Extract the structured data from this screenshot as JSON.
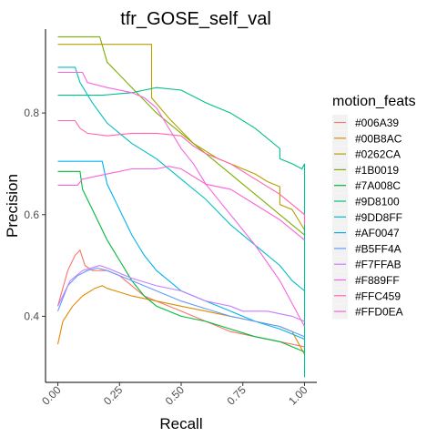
{
  "chart_data": {
    "type": "line",
    "title": "tfr_GOSE_self_val",
    "xlabel": "Recall",
    "ylabel": "Precision",
    "xlim": [
      -0.05,
      1.05
    ],
    "ylim": [
      0.27,
      0.965
    ],
    "x_ticks": [
      0,
      0.25,
      0.5,
      0.75,
      1
    ],
    "x_tick_labels": [
      "0.00",
      "0.25",
      "0.50",
      "0.75",
      "1.00"
    ],
    "y_ticks": [
      0.4,
      0.6,
      0.8
    ],
    "y_tick_labels": [
      "0.4",
      "0.6",
      "0.8"
    ],
    "grid": false,
    "legend": {
      "title": "motion_feats",
      "placement": "right"
    },
    "series": [
      {
        "name": "#006A39",
        "color": "#F8766D",
        "points": [
          [
            0,
            0.42
          ],
          [
            0.04,
            0.49
          ],
          [
            0.07,
            0.52
          ],
          [
            0.09,
            0.53
          ],
          [
            0.11,
            0.5
          ],
          [
            0.14,
            0.49
          ],
          [
            0.2,
            0.49
          ],
          [
            0.25,
            0.48
          ],
          [
            0.3,
            0.46
          ],
          [
            0.35,
            0.44
          ],
          [
            0.4,
            0.43
          ],
          [
            0.5,
            0.41
          ],
          [
            0.6,
            0.39
          ],
          [
            0.7,
            0.37
          ],
          [
            0.8,
            0.36
          ],
          [
            0.9,
            0.35
          ],
          [
            1,
            0.34
          ]
        ]
      },
      {
        "name": "#00B8AC",
        "color": "#DE8C00",
        "points": [
          [
            0,
            0.345
          ],
          [
            0.02,
            0.39
          ],
          [
            0.06,
            0.42
          ],
          [
            0.1,
            0.44
          ],
          [
            0.15,
            0.455
          ],
          [
            0.18,
            0.46
          ],
          [
            0.2,
            0.455
          ],
          [
            0.3,
            0.44
          ],
          [
            0.4,
            0.43
          ],
          [
            0.5,
            0.42
          ],
          [
            0.6,
            0.41
          ],
          [
            0.7,
            0.4
          ],
          [
            0.8,
            0.39
          ],
          [
            0.9,
            0.38
          ],
          [
            0.95,
            0.37
          ],
          [
            1,
            0.325
          ]
        ]
      },
      {
        "name": "#0262CA",
        "color": "#B79F00",
        "points": [
          [
            0,
            0.935
          ],
          [
            0.38,
            0.935
          ],
          [
            0.38,
            0.83
          ],
          [
            0.45,
            0.79
          ],
          [
            0.55,
            0.74
          ],
          [
            0.65,
            0.71
          ],
          [
            0.7,
            0.7
          ],
          [
            0.75,
            0.69
          ],
          [
            0.8,
            0.68
          ],
          [
            0.85,
            0.665
          ],
          [
            0.9,
            0.655
          ],
          [
            0.9,
            0.62
          ],
          [
            0.95,
            0.61
          ],
          [
            1,
            0.57
          ]
        ]
      },
      {
        "name": "#1B0019",
        "color": "#7CAE00",
        "points": [
          [
            0,
            0.95
          ],
          [
            0.17,
            0.95
          ],
          [
            0.2,
            0.9
          ],
          [
            0.3,
            0.85
          ],
          [
            0.4,
            0.8
          ],
          [
            0.5,
            0.76
          ],
          [
            0.6,
            0.72
          ],
          [
            0.7,
            0.68
          ],
          [
            0.75,
            0.66
          ],
          [
            0.8,
            0.64
          ],
          [
            0.85,
            0.62
          ],
          [
            0.9,
            0.6
          ],
          [
            0.95,
            0.58
          ],
          [
            1,
            0.56
          ]
        ]
      },
      {
        "name": "#7A008C",
        "color": "#00BA38",
        "points": [
          [
            0,
            0.685
          ],
          [
            0.09,
            0.685
          ],
          [
            0.1,
            0.65
          ],
          [
            0.15,
            0.6
          ],
          [
            0.2,
            0.55
          ],
          [
            0.25,
            0.51
          ],
          [
            0.3,
            0.47
          ],
          [
            0.35,
            0.44
          ],
          [
            0.4,
            0.42
          ],
          [
            0.5,
            0.4
          ],
          [
            0.6,
            0.39
          ],
          [
            0.7,
            0.375
          ],
          [
            0.8,
            0.36
          ],
          [
            0.9,
            0.35
          ],
          [
            1,
            0.33
          ]
        ]
      },
      {
        "name": "#9D8100",
        "color": "#00C08B",
        "points": [
          [
            0,
            0.835
          ],
          [
            0.18,
            0.835
          ],
          [
            0.3,
            0.84
          ],
          [
            0.35,
            0.845
          ],
          [
            0.4,
            0.85
          ],
          [
            0.5,
            0.845
          ],
          [
            0.6,
            0.82
          ],
          [
            0.7,
            0.8
          ],
          [
            0.8,
            0.77
          ],
          [
            0.9,
            0.73
          ],
          [
            0.9,
            0.71
          ],
          [
            0.95,
            0.7
          ],
          [
            0.99,
            0.69
          ],
          [
            1,
            0.7
          ],
          [
            1,
            0.28
          ]
        ]
      },
      {
        "name": "#9DD8FF",
        "color": "#00BFC4",
        "points": [
          [
            0,
            0.89
          ],
          [
            0.07,
            0.89
          ],
          [
            0.09,
            0.86
          ],
          [
            0.14,
            0.82
          ],
          [
            0.2,
            0.78
          ],
          [
            0.25,
            0.76
          ],
          [
            0.3,
            0.74
          ],
          [
            0.4,
            0.71
          ],
          [
            0.5,
            0.67
          ],
          [
            0.6,
            0.63
          ],
          [
            0.7,
            0.58
          ],
          [
            0.8,
            0.54
          ],
          [
            0.9,
            0.5
          ],
          [
            0.95,
            0.47
          ],
          [
            1,
            0.45
          ]
        ]
      },
      {
        "name": "#AF0047",
        "color": "#00B4F0",
        "points": [
          [
            0,
            0.705
          ],
          [
            0.18,
            0.705
          ],
          [
            0.2,
            0.66
          ],
          [
            0.25,
            0.61
          ],
          [
            0.3,
            0.56
          ],
          [
            0.35,
            0.52
          ],
          [
            0.4,
            0.49
          ],
          [
            0.45,
            0.47
          ],
          [
            0.5,
            0.45
          ],
          [
            0.6,
            0.43
          ],
          [
            0.7,
            0.41
          ],
          [
            0.8,
            0.39
          ],
          [
            0.9,
            0.375
          ],
          [
            1,
            0.355
          ]
        ]
      },
      {
        "name": "#B5FF4A",
        "color": "#619CFF",
        "points": [
          [
            0,
            0.41
          ],
          [
            0.04,
            0.46
          ],
          [
            0.08,
            0.48
          ],
          [
            0.12,
            0.49
          ],
          [
            0.16,
            0.495
          ],
          [
            0.2,
            0.49
          ],
          [
            0.25,
            0.48
          ],
          [
            0.3,
            0.47
          ],
          [
            0.4,
            0.45
          ],
          [
            0.5,
            0.43
          ],
          [
            0.6,
            0.415
          ],
          [
            0.7,
            0.4
          ],
          [
            0.8,
            0.39
          ],
          [
            0.9,
            0.38
          ],
          [
            1,
            0.36
          ]
        ]
      },
      {
        "name": "#F7FFAB",
        "color": "#C77CFF",
        "points": [
          [
            0,
            0.42
          ],
          [
            0.05,
            0.47
          ],
          [
            0.1,
            0.49
          ],
          [
            0.17,
            0.5
          ],
          [
            0.2,
            0.495
          ],
          [
            0.3,
            0.475
          ],
          [
            0.4,
            0.46
          ],
          [
            0.5,
            0.45
          ],
          [
            0.6,
            0.43
          ],
          [
            0.65,
            0.425
          ],
          [
            0.7,
            0.42
          ],
          [
            0.75,
            0.41
          ],
          [
            0.85,
            0.41
          ],
          [
            0.95,
            0.4
          ],
          [
            1,
            0.39
          ]
        ]
      },
      {
        "name": "#F889FF",
        "color": "#F564E3",
        "points": [
          [
            0,
            0.88
          ],
          [
            0.1,
            0.88
          ],
          [
            0.12,
            0.86
          ],
          [
            0.2,
            0.85
          ],
          [
            0.3,
            0.84
          ],
          [
            0.35,
            0.83
          ],
          [
            0.4,
            0.81
          ],
          [
            0.45,
            0.77
          ],
          [
            0.5,
            0.73
          ],
          [
            0.55,
            0.7
          ],
          [
            0.6,
            0.66
          ],
          [
            0.7,
            0.6
          ],
          [
            0.8,
            0.54
          ],
          [
            0.9,
            0.47
          ],
          [
            1,
            0.38
          ]
        ]
      },
      {
        "name": "#FFC459",
        "color": "#FF64B0",
        "points": [
          [
            0,
            0.785
          ],
          [
            0.07,
            0.785
          ],
          [
            0.09,
            0.77
          ],
          [
            0.12,
            0.76
          ],
          [
            0.2,
            0.755
          ],
          [
            0.3,
            0.76
          ],
          [
            0.4,
            0.76
          ],
          [
            0.5,
            0.755
          ],
          [
            0.55,
            0.735
          ],
          [
            0.6,
            0.72
          ],
          [
            0.7,
            0.7
          ],
          [
            0.8,
            0.67
          ],
          [
            0.9,
            0.64
          ],
          [
            0.95,
            0.62
          ],
          [
            1,
            0.6
          ],
          [
            1,
            0.58
          ]
        ]
      },
      {
        "name": "#FFD0EA",
        "color": "#FB61D7",
        "points": [
          [
            0,
            0.658
          ],
          [
            0.08,
            0.658
          ],
          [
            0.1,
            0.67
          ],
          [
            0.2,
            0.68
          ],
          [
            0.3,
            0.69
          ],
          [
            0.4,
            0.69
          ],
          [
            0.45,
            0.695
          ],
          [
            0.5,
            0.69
          ],
          [
            0.55,
            0.675
          ],
          [
            0.6,
            0.66
          ],
          [
            0.7,
            0.65
          ],
          [
            0.8,
            0.62
          ],
          [
            0.9,
            0.59
          ],
          [
            1,
            0.55
          ]
        ]
      }
    ]
  }
}
